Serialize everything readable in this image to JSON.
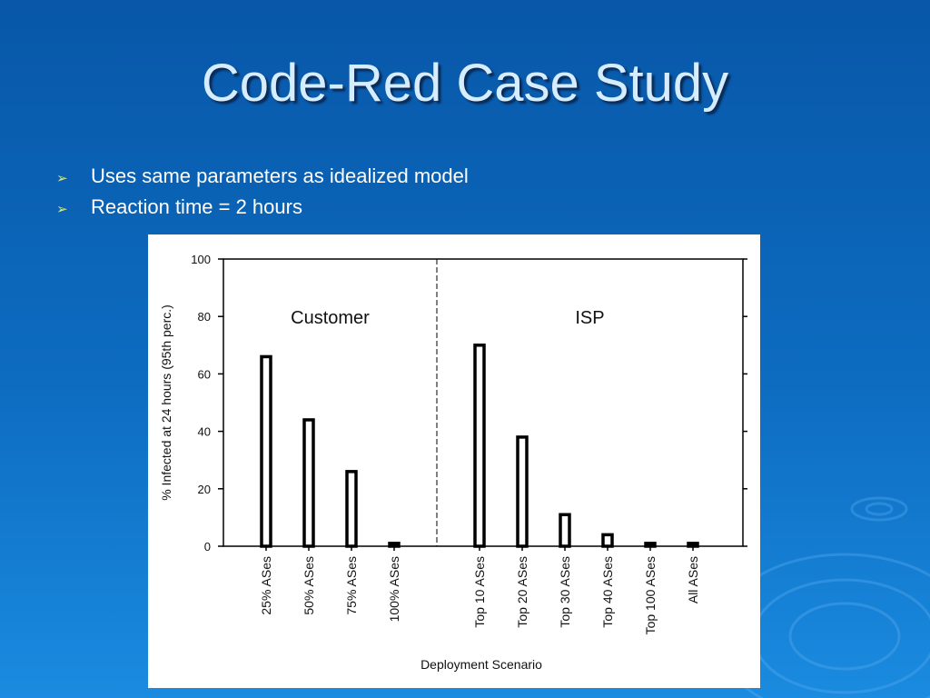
{
  "slide": {
    "title": "Code-Red Case Study",
    "bullets": [
      "Uses same parameters as idealized model",
      "Reaction time = 2 hours"
    ]
  },
  "chart_data": {
    "type": "bar",
    "xlabel": "Deployment Scenario",
    "ylabel": "% Infected at 24 hours (95th perc.)",
    "annotations": [
      "Customer",
      "ISP"
    ],
    "categories": [
      "25% ASes",
      "50% ASes",
      "75% ASes",
      "100% ASes",
      "Top 10 ASes",
      "Top 20 ASes",
      "Top 30 ASes",
      "Top 40 ASes",
      "Top 100 ASes",
      "All ASes"
    ],
    "values": [
      66,
      44,
      26,
      1,
      70,
      38,
      11,
      4,
      1,
      1
    ],
    "color": "#ffffff",
    "edgecolor": "#000000",
    "ylim": [
      0,
      100
    ],
    "yticks": [
      0,
      20,
      40,
      60,
      80,
      100
    ]
  }
}
